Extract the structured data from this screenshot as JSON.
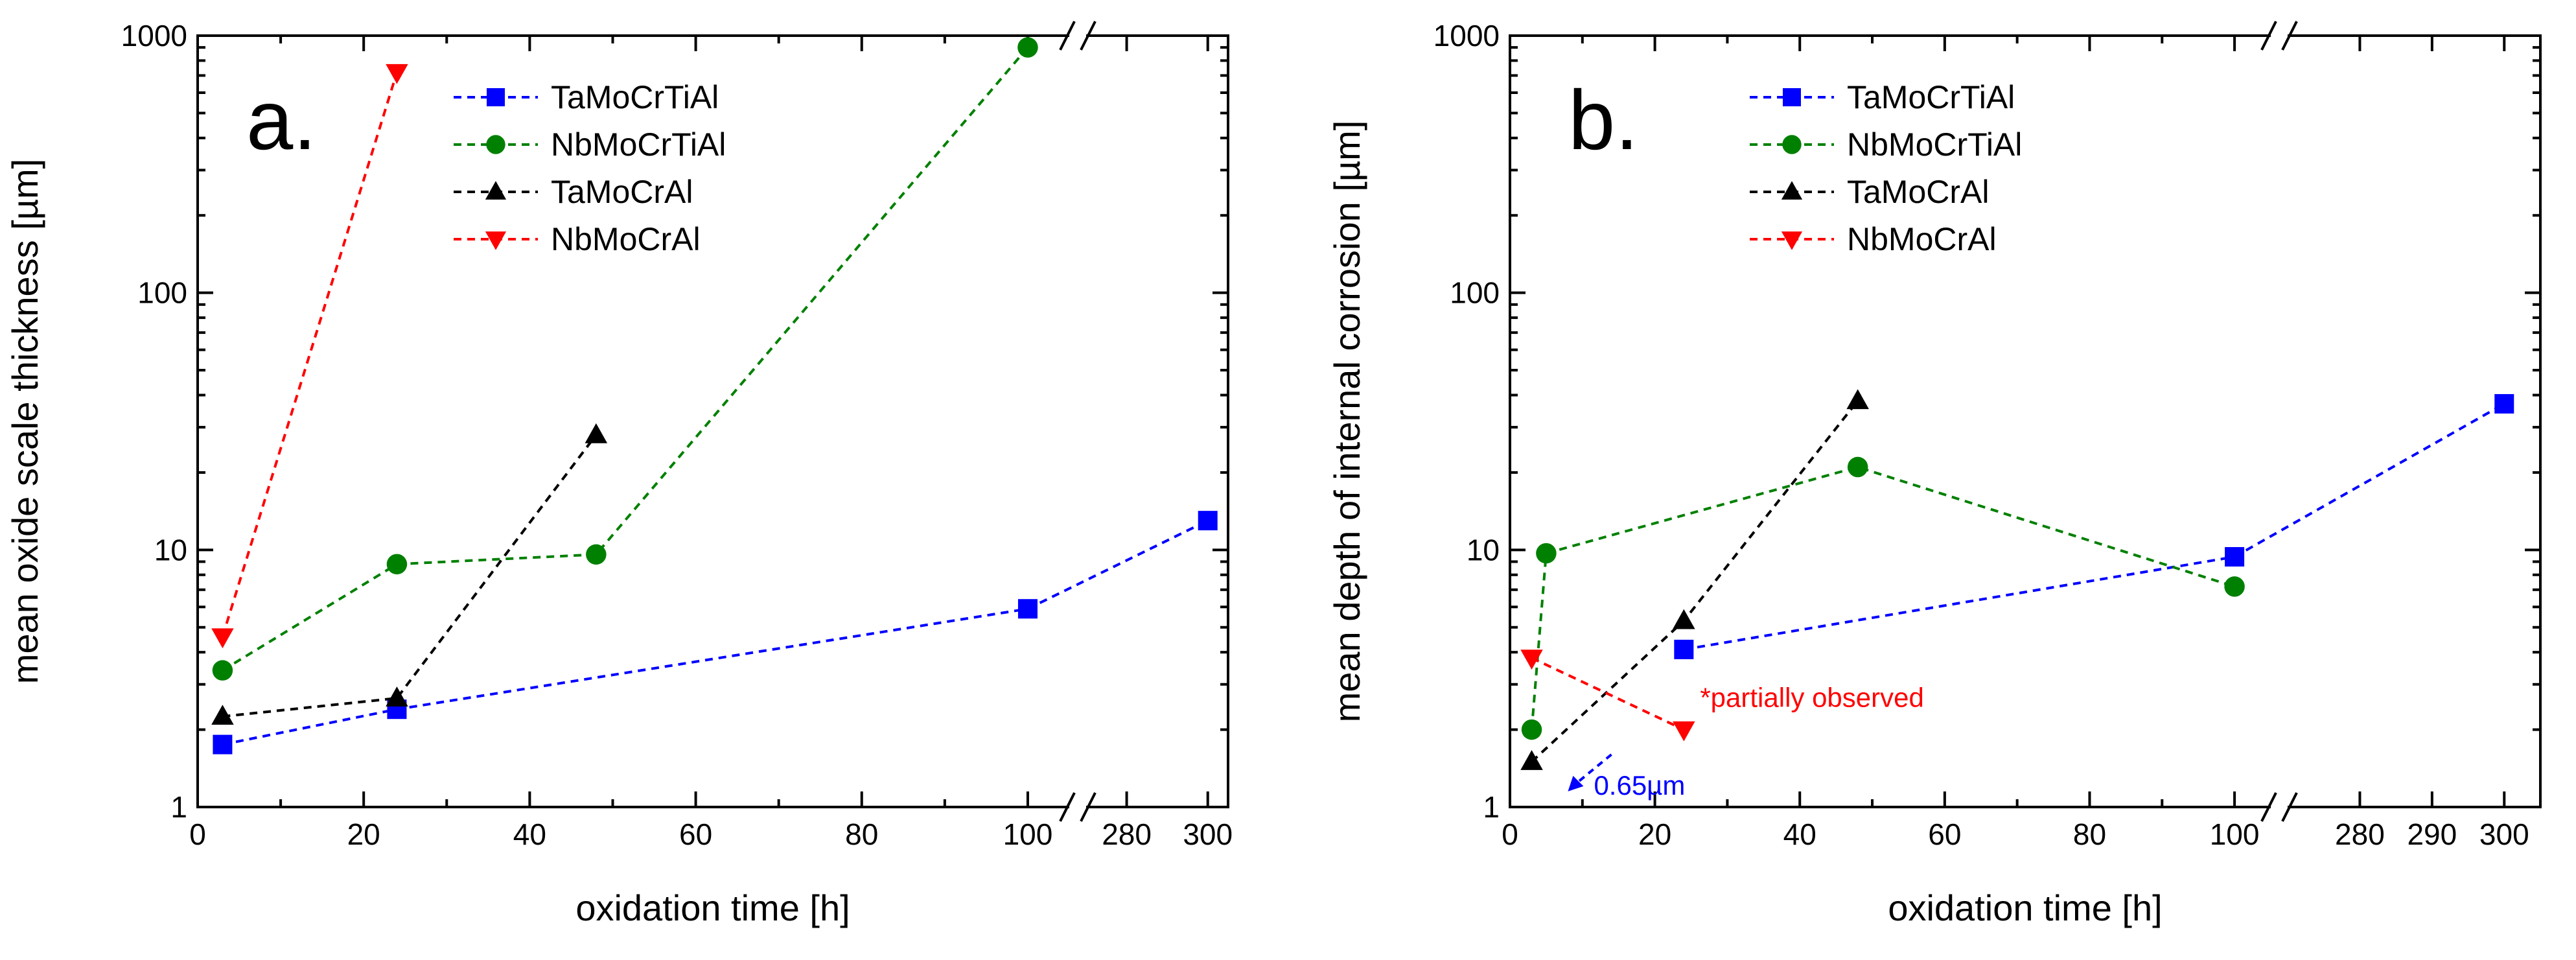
{
  "chart_data": [
    {
      "type": "line",
      "panel_label": "a.",
      "xlabel": "oxidation time [h]",
      "ylabel": "mean oxide scale thickness [µm]",
      "yscale": "log",
      "ylim": [
        1,
        1000
      ],
      "x_axis_segments": [
        [
          0,
          105
        ],
        [
          270,
          305
        ]
      ],
      "x_break": true,
      "xticks": [
        0,
        20,
        40,
        60,
        80,
        100,
        280,
        300
      ],
      "yticks": [
        1,
        10,
        100,
        1000
      ],
      "legend_position": "top",
      "series": [
        {
          "name": "TaMoCrTiAl",
          "color": "#0000ff",
          "marker": "square",
          "x": [
            3,
            24,
            100,
            300
          ],
          "y": [
            1.75,
            2.4,
            5.9,
            13
          ]
        },
        {
          "name": "NbMoCrTiAl",
          "color": "#008000",
          "marker": "circle",
          "x": [
            3,
            24,
            48,
            100
          ],
          "y": [
            3.4,
            8.8,
            9.6,
            900
          ]
        },
        {
          "name": "TaMoCrAl",
          "color": "#000000",
          "marker": "triangle-up",
          "x": [
            3,
            24,
            48
          ],
          "y": [
            2.25,
            2.65,
            28
          ]
        },
        {
          "name": "NbMoCrAl",
          "color": "#ff0000",
          "marker": "triangle-down",
          "x": [
            3,
            24
          ],
          "y": [
            4.6,
            720
          ]
        }
      ],
      "annotations": []
    },
    {
      "type": "line",
      "panel_label": "b.",
      "xlabel": "oxidation time [h]",
      "ylabel": "mean depth of internal corrosion [µm]",
      "yscale": "log",
      "ylim": [
        1,
        1000
      ],
      "x_axis_segments": [
        [
          0,
          105
        ],
        [
          270,
          305
        ]
      ],
      "x_break": true,
      "xticks": [
        0,
        20,
        40,
        60,
        80,
        100,
        280,
        290,
        300
      ],
      "yticks": [
        1,
        10,
        100,
        1000
      ],
      "legend_position": "top",
      "series": [
        {
          "name": "TaMoCrTiAl",
          "color": "#0000ff",
          "marker": "square",
          "x": [
            24,
            100,
            300
          ],
          "y": [
            4.1,
            9.4,
            37
          ]
        },
        {
          "name": "NbMoCrTiAl",
          "color": "#008000",
          "marker": "circle",
          "x": [
            3,
            5,
            48,
            100
          ],
          "y": [
            2.0,
            9.7,
            21,
            7.2
          ]
        },
        {
          "name": "TaMoCrAl",
          "color": "#000000",
          "marker": "triangle-up",
          "x": [
            3,
            24,
            48
          ],
          "y": [
            1.5,
            5.3,
            38
          ]
        },
        {
          "name": "NbMoCrAl",
          "color": "#ff0000",
          "marker": "triangle-down",
          "x": [
            3,
            24
          ],
          "y": [
            3.8,
            2.0
          ]
        }
      ],
      "annotations": [
        {
          "text": "*partially observed",
          "color": "#ff0000",
          "x": 24,
          "y": 2.0
        },
        {
          "text": "0.65µm",
          "color": "#0000ff",
          "x": 8,
          "y": 1.15,
          "arrow_from": [
            14,
            1.6
          ]
        }
      ]
    }
  ]
}
